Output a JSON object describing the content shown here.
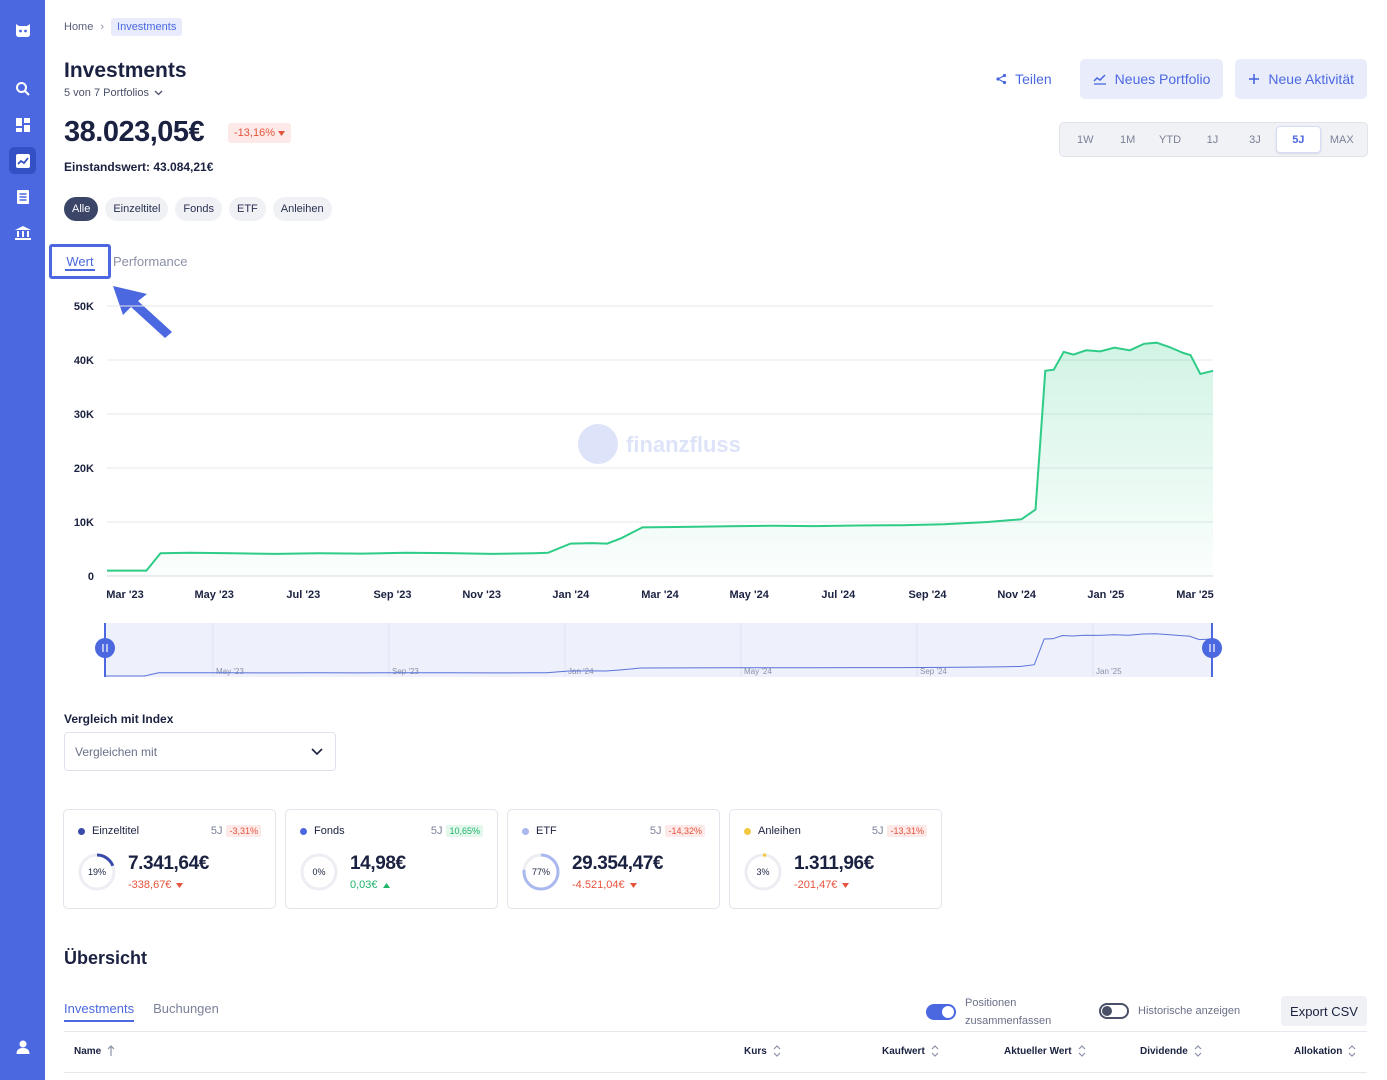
{
  "breadcrumb": {
    "home": "Home",
    "current": "Investments"
  },
  "header": {
    "title": "Investments",
    "portfolio_selector": "5 von 7 Portfolios",
    "share_label": "Teilen",
    "new_portfolio_label": "Neues Portfolio",
    "new_activity_label": "Neue Aktivität"
  },
  "summary": {
    "total_value": "38.023,05€",
    "change_pct": "-13,16%",
    "cost_basis": "Einstandswert: 43.084,21€"
  },
  "time_ranges": [
    "1W",
    "1M",
    "YTD",
    "1J",
    "3J",
    "5J",
    "MAX"
  ],
  "selected_range": "5J",
  "filters": [
    "Alle",
    "Einzeltitel",
    "Fonds",
    "ETF",
    "Anleihen"
  ],
  "selected_filter": "Alle",
  "chart_tabs": {
    "value": "Wert",
    "performance": "Performance"
  },
  "watermark": "finanzfluss",
  "chart_data": {
    "type": "area",
    "title": "",
    "xlabel": "",
    "ylabel": "",
    "y_ticks": [
      "0",
      "10K",
      "20K",
      "30K",
      "40K",
      "50K"
    ],
    "ylim": [
      0,
      50000
    ],
    "x_ticks": [
      "Mar '23",
      "May '23",
      "Jul '23",
      "Sep '23",
      "Nov '23",
      "Jan '24",
      "Mar '24",
      "May '24",
      "Jul '24",
      "Sep '24",
      "Nov '24",
      "Jan '25",
      "Mar '25"
    ],
    "navigator_ticks": [
      "May '23",
      "Sep '23",
      "Jan '24",
      "May '24",
      "Sep '24",
      "Jan '25"
    ],
    "grid": true,
    "line_color": "#2ecc87",
    "x_range": [
      "2023-02-15",
      "2025-04-10"
    ],
    "series": [
      {
        "x": [
          "2023-02-15",
          "2023-03-15",
          "2023-03-25",
          "2023-04-15",
          "2023-05-15",
          "2023-06-15",
          "2023-07-15",
          "2023-08-15",
          "2023-09-15",
          "2023-10-15",
          "2023-11-15",
          "2023-12-15",
          "2023-12-25",
          "2024-01-10",
          "2024-01-25",
          "2024-02-05",
          "2024-02-15",
          "2024-03-01",
          "2024-04-01",
          "2024-05-01",
          "2024-06-01",
          "2024-07-01",
          "2024-08-01",
          "2024-09-01",
          "2024-10-01",
          "2024-11-01",
          "2024-11-15",
          "2024-11-25",
          "2024-12-05",
          "2024-12-12",
          "2024-12-18",
          "2024-12-25",
          "2025-01-01",
          "2025-01-10",
          "2025-01-20",
          "2025-01-30",
          "2025-02-10",
          "2025-02-20",
          "2025-03-01",
          "2025-03-10",
          "2025-03-20",
          "2025-03-25",
          "2025-04-01",
          "2025-04-10"
        ],
        "values": [
          1000,
          1000,
          4200,
          4300,
          4200,
          4100,
          4200,
          4150,
          4300,
          4250,
          4100,
          4200,
          4300,
          6000,
          6100,
          6000,
          7000,
          9000,
          9100,
          9200,
          9300,
          9250,
          9350,
          9400,
          9600,
          10000,
          10300,
          10500,
          12300,
          38000,
          38200,
          41500,
          41000,
          41800,
          41600,
          42300,
          41800,
          43000,
          43200,
          42400,
          41300,
          40900,
          37400,
          38000
        ]
      }
    ]
  },
  "compare": {
    "label": "Vergleich mit Index",
    "placeholder": "Vergleichen mit"
  },
  "cards": [
    {
      "name": "Einzeltitel",
      "period": "5J",
      "pct": "-3,31%",
      "pct_dir": "neg",
      "value": "7.341,64€",
      "delta": "-338,67€",
      "delta_dir": "neg",
      "allocation": "19%",
      "allocation_value": 0.19,
      "color": "#3a4aa8"
    },
    {
      "name": "Fonds",
      "period": "5J",
      "pct": "10,65%",
      "pct_dir": "pos",
      "value": "14,98€",
      "delta": "0,03€",
      "delta_dir": "pos",
      "allocation": "0%",
      "allocation_value": 0.0,
      "color": "#4b68e0"
    },
    {
      "name": "ETF",
      "period": "5J",
      "pct": "-14,32%",
      "pct_dir": "neg",
      "value": "29.354,47€",
      "delta": "-4.521,04€",
      "delta_dir": "neg",
      "allocation": "77%",
      "allocation_value": 0.77,
      "color": "#a9b8ee"
    },
    {
      "name": "Anleihen",
      "period": "5J",
      "pct": "-13,31%",
      "pct_dir": "neg",
      "value": "1.311,96€",
      "delta": "-201,47€",
      "delta_dir": "neg",
      "allocation": "3%",
      "allocation_value": 0.03,
      "color": "#f5c842"
    }
  ],
  "overview": {
    "title": "Übersicht",
    "tabs": [
      "Investments",
      "Buchungen"
    ],
    "toggle_merge_line1": "Positionen",
    "toggle_merge_line2": "zusammenfassen",
    "toggle_history": "Historische anzeigen",
    "export": "Export CSV",
    "columns": [
      "Name",
      "Kurs",
      "Kaufwert",
      "Aktueller Wert",
      "Dividende",
      "Allokation"
    ]
  }
}
